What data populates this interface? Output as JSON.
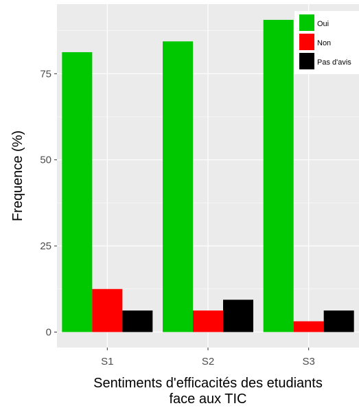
{
  "chart_data": {
    "type": "bar",
    "categories": [
      "S1",
      "S2",
      "S3"
    ],
    "series": [
      {
        "name": "Oui",
        "values": [
          81.25,
          84.38,
          90.63
        ],
        "color": "#00c800"
      },
      {
        "name": "Non",
        "values": [
          12.5,
          6.25,
          3.13
        ],
        "color": "#ff0000"
      },
      {
        "name": "Pas d'avis",
        "values": [
          6.25,
          9.38,
          6.25
        ],
        "color": "#000000"
      }
    ],
    "title": "",
    "xlabel_lines": [
      "Sentiments d'efficacités des etudiants",
      "face aux TIC"
    ],
    "ylabel": "Frequence (%)",
    "ylim": [
      -4.5,
      95.2
    ],
    "yticks": [
      0,
      25,
      50,
      75
    ],
    "ytick_labels": [
      "0",
      "25",
      "50",
      "75"
    ],
    "grid": true,
    "legend_position": "top-right",
    "panel_color": "#ebebeb",
    "grid_color": "#ffffff"
  }
}
